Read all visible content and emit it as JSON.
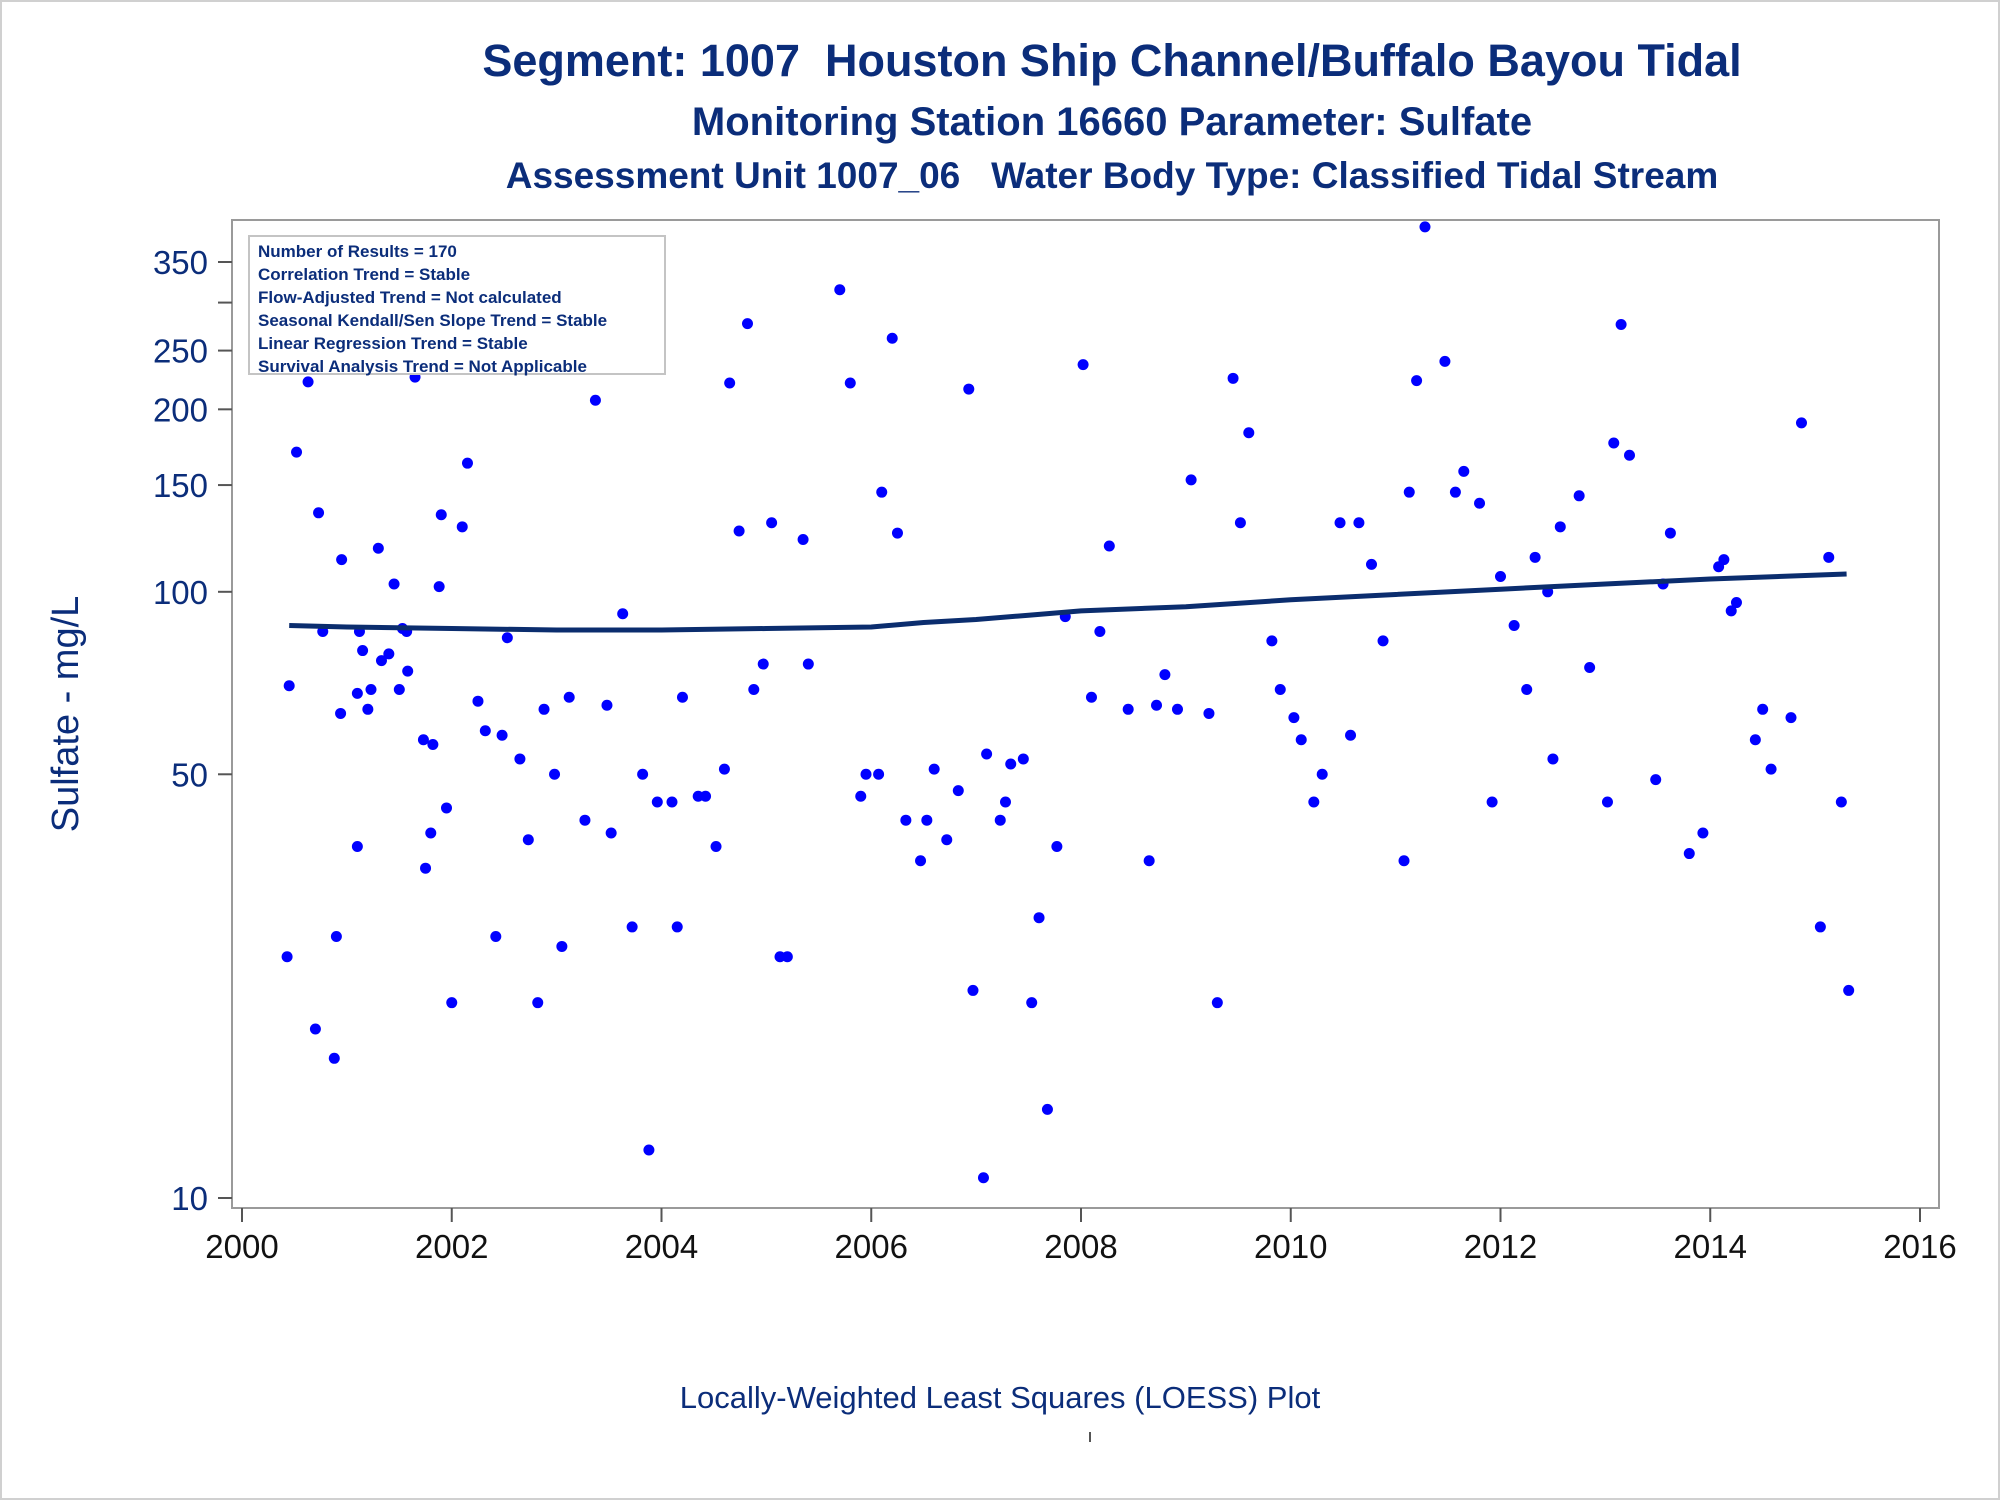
{
  "titles": {
    "line1": "Segment: 1007  Houston Ship Channel/Buffalo Bayou Tidal",
    "line2": "Monitoring Station 16660 Parameter: Sulfate",
    "line3": "Assessment Unit 1007_06   Water Body Type: Classified Tidal Stream"
  },
  "stats_box": [
    "Number of Results = 170",
    "Correlation Trend = Stable",
    "Flow-Adjusted Trend = Not calculated",
    "Seasonal Kendall/Sen Slope Trend = Stable",
    "Linear Regression Trend = Stable",
    "Survival Analysis Trend = Not Applicable"
  ],
  "footnote": "Locally-Weighted Least Squares (LOESS) Plot",
  "colors": {
    "points": "#0000ff",
    "loess": "#0b2d6e",
    "text": "#0b2d7a",
    "axis": "#9a9a9a"
  },
  "chart_data": {
    "type": "scatter",
    "ylabel": "Sulfate - mg/L",
    "xlabel": "",
    "yscale": "log",
    "xlim": [
      2000,
      2016
    ],
    "ylim": [
      10,
      400
    ],
    "x_ticks": [
      2000,
      2002,
      2004,
      2006,
      2008,
      2010,
      2012,
      2014,
      2016
    ],
    "y_ticks": [
      10,
      50,
      100,
      150,
      200,
      250,
      350
    ],
    "y_minor_ticks": [
      300
    ],
    "grid": false,
    "legend": "top-left",
    "series": [
      {
        "kind": "points",
        "points": [
          [
            2000.43,
            25
          ],
          [
            2000.45,
            70
          ],
          [
            2000.52,
            170
          ],
          [
            2000.55,
            244
          ],
          [
            2000.6,
            244
          ],
          [
            2000.63,
            222
          ],
          [
            2000.7,
            19
          ],
          [
            2000.73,
            135
          ],
          [
            2000.76,
            302
          ],
          [
            2000.77,
            86
          ],
          [
            2000.88,
            17
          ],
          [
            2000.9,
            27
          ],
          [
            2000.94,
            63
          ],
          [
            2000.95,
            113
          ],
          [
            2001.1,
            38
          ],
          [
            2001.1,
            68
          ],
          [
            2001.12,
            86
          ],
          [
            2001.15,
            80
          ],
          [
            2001.2,
            64
          ],
          [
            2001.23,
            69
          ],
          [
            2001.3,
            118
          ],
          [
            2001.33,
            77
          ],
          [
            2001.4,
            79
          ],
          [
            2001.45,
            103
          ],
          [
            2001.5,
            69
          ],
          [
            2001.53,
            87
          ],
          [
            2001.57,
            86
          ],
          [
            2001.58,
            74
          ],
          [
            2001.65,
            226
          ],
          [
            2001.73,
            57
          ],
          [
            2001.75,
            35
          ],
          [
            2001.8,
            40
          ],
          [
            2001.82,
            56
          ],
          [
            2001.88,
            102
          ],
          [
            2001.9,
            134
          ],
          [
            2001.95,
            44
          ],
          [
            2002.0,
            21
          ],
          [
            2002.1,
            128
          ],
          [
            2002.15,
            163
          ],
          [
            2002.25,
            66
          ],
          [
            2002.32,
            59
          ],
          [
            2002.42,
            27
          ],
          [
            2002.48,
            58
          ],
          [
            2002.53,
            84
          ],
          [
            2002.65,
            53
          ],
          [
            2002.73,
            39
          ],
          [
            2002.82,
            21
          ],
          [
            2002.88,
            64
          ],
          [
            2002.98,
            50
          ],
          [
            2003.05,
            26
          ],
          [
            2003.12,
            67
          ],
          [
            2003.27,
            42
          ],
          [
            2003.37,
            207
          ],
          [
            2003.48,
            65
          ],
          [
            2003.52,
            40
          ],
          [
            2003.63,
            92
          ],
          [
            2003.72,
            28
          ],
          [
            2003.82,
            50
          ],
          [
            2003.88,
            12
          ],
          [
            2003.96,
            45
          ],
          [
            2004.1,
            45
          ],
          [
            2004.15,
            28
          ],
          [
            2004.2,
            67
          ],
          [
            2004.35,
            46
          ],
          [
            2004.42,
            46
          ],
          [
            2004.52,
            38
          ],
          [
            2004.6,
            51
          ],
          [
            2004.65,
            221
          ],
          [
            2004.74,
            126
          ],
          [
            2004.82,
            277
          ],
          [
            2004.88,
            69
          ],
          [
            2004.97,
            76
          ],
          [
            2005.05,
            130
          ],
          [
            2005.13,
            25
          ],
          [
            2005.2,
            25
          ],
          [
            2005.35,
            122
          ],
          [
            2005.4,
            76
          ],
          [
            2005.7,
            315
          ],
          [
            2005.8,
            221
          ],
          [
            2005.9,
            46
          ],
          [
            2005.95,
            50
          ],
          [
            2006.07,
            50
          ],
          [
            2006.1,
            146
          ],
          [
            2006.2,
            262
          ],
          [
            2006.25,
            125
          ],
          [
            2006.33,
            42
          ],
          [
            2006.47,
            36
          ],
          [
            2006.53,
            42
          ],
          [
            2006.6,
            51
          ],
          [
            2006.72,
            39
          ],
          [
            2006.83,
            47
          ],
          [
            2006.93,
            216
          ],
          [
            2006.97,
            22
          ],
          [
            2007.07,
            10.8
          ],
          [
            2007.1,
            54
          ],
          [
            2007.23,
            42
          ],
          [
            2007.28,
            45
          ],
          [
            2007.33,
            52
          ],
          [
            2007.45,
            53
          ],
          [
            2007.53,
            21
          ],
          [
            2007.6,
            29
          ],
          [
            2007.68,
            14
          ],
          [
            2007.77,
            38
          ],
          [
            2007.85,
            91
          ],
          [
            2008.02,
            237
          ],
          [
            2008.1,
            67
          ],
          [
            2008.18,
            86
          ],
          [
            2008.27,
            119
          ],
          [
            2008.45,
            64
          ],
          [
            2008.65,
            36
          ],
          [
            2008.72,
            65
          ],
          [
            2008.8,
            73
          ],
          [
            2008.92,
            64
          ],
          [
            2009.05,
            153
          ],
          [
            2009.22,
            63
          ],
          [
            2009.3,
            21
          ],
          [
            2009.45,
            225
          ],
          [
            2009.52,
            130
          ],
          [
            2009.6,
            183
          ],
          [
            2009.82,
            83
          ],
          [
            2009.9,
            69
          ],
          [
            2010.03,
            62
          ],
          [
            2010.1,
            57
          ],
          [
            2010.22,
            45
          ],
          [
            2010.3,
            50
          ],
          [
            2010.47,
            130
          ],
          [
            2010.57,
            58
          ],
          [
            2010.65,
            130
          ],
          [
            2010.77,
            111
          ],
          [
            2010.88,
            83
          ],
          [
            2011.08,
            36
          ],
          [
            2011.13,
            146
          ],
          [
            2011.2,
            223
          ],
          [
            2011.28,
            400
          ],
          [
            2011.47,
            240
          ],
          [
            2011.57,
            146
          ],
          [
            2011.65,
            158
          ],
          [
            2011.8,
            140
          ],
          [
            2011.92,
            45
          ],
          [
            2012.0,
            106
          ],
          [
            2012.13,
            88
          ],
          [
            2012.25,
            69
          ],
          [
            2012.33,
            114
          ],
          [
            2012.45,
            100
          ],
          [
            2012.5,
            53
          ],
          [
            2012.57,
            128
          ],
          [
            2012.75,
            144
          ],
          [
            2012.85,
            75
          ],
          [
            2013.02,
            45
          ],
          [
            2013.08,
            176
          ],
          [
            2013.15,
            276
          ],
          [
            2013.23,
            168
          ],
          [
            2013.48,
            49
          ],
          [
            2013.55,
            103
          ],
          [
            2013.62,
            125
          ],
          [
            2013.8,
            37
          ],
          [
            2013.93,
            40
          ],
          [
            2014.08,
            110
          ],
          [
            2014.13,
            113
          ],
          [
            2014.2,
            93
          ],
          [
            2014.25,
            96
          ],
          [
            2014.43,
            57
          ],
          [
            2014.5,
            64
          ],
          [
            2014.58,
            51
          ],
          [
            2014.77,
            62
          ],
          [
            2014.87,
            190
          ],
          [
            2015.05,
            28
          ],
          [
            2015.13,
            114
          ],
          [
            2015.25,
            45
          ],
          [
            2015.32,
            22
          ]
        ]
      },
      {
        "kind": "loess",
        "points": [
          [
            2000.45,
            88
          ],
          [
            2001.0,
            87.5
          ],
          [
            2002.0,
            87
          ],
          [
            2003.0,
            86.5
          ],
          [
            2004.0,
            86.5
          ],
          [
            2005.0,
            87
          ],
          [
            2006.0,
            87.5
          ],
          [
            2006.5,
            89
          ],
          [
            2007.0,
            90
          ],
          [
            2007.5,
            91.5
          ],
          [
            2008.0,
            93
          ],
          [
            2009.0,
            94.5
          ],
          [
            2010.0,
            97
          ],
          [
            2011.0,
            99
          ],
          [
            2012.0,
            101
          ],
          [
            2013.0,
            103
          ],
          [
            2014.0,
            105
          ],
          [
            2015.3,
            107
          ]
        ]
      }
    ]
  }
}
